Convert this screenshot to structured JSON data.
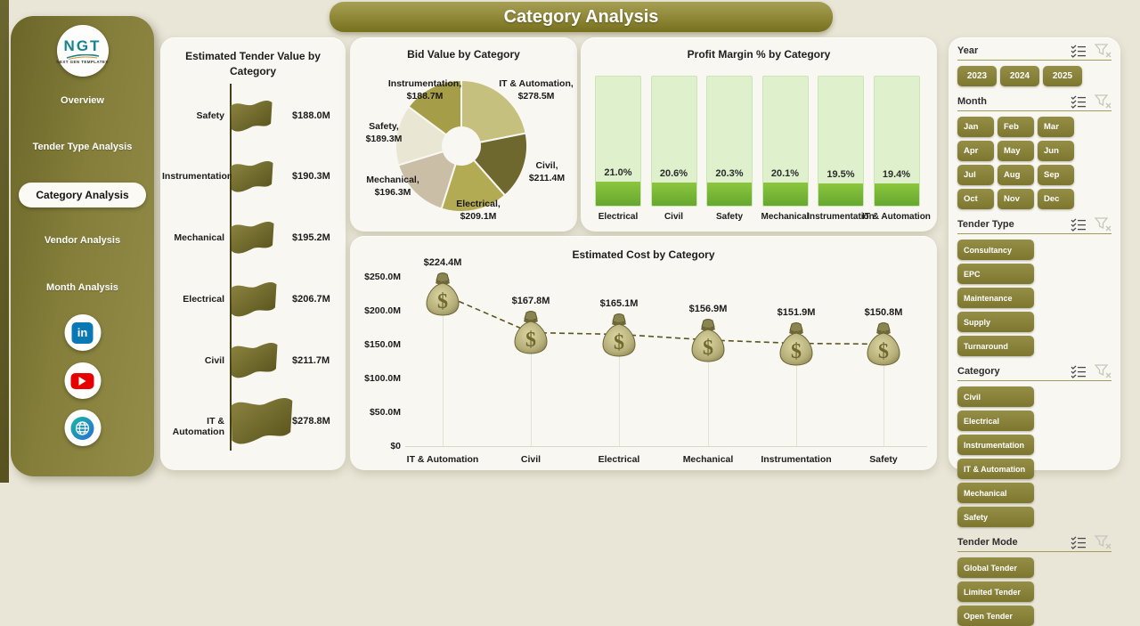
{
  "header": {
    "title": "Category Analysis"
  },
  "sidebar": {
    "logo": {
      "text": "NGT",
      "tagline": "NEXT GEN TEMPLATES"
    },
    "nav": [
      {
        "label": "Overview",
        "active": false
      },
      {
        "label": "Tender Type Analysis",
        "active": false
      },
      {
        "label": "Category Analysis",
        "active": true
      },
      {
        "label": "Vendor Analysis",
        "active": false
      },
      {
        "label": "Month Analysis",
        "active": false
      }
    ],
    "social": [
      {
        "name": "linkedin-icon"
      },
      {
        "name": "youtube-icon"
      },
      {
        "name": "globe-icon"
      }
    ]
  },
  "colors": {
    "accent_olive": "#8a8339",
    "sidebar_dark": "#6b6529",
    "panel_bg": "#f8f7f2",
    "page_bg": "#e9e6d8",
    "bar_track_green": "#dff0cd",
    "bar_fill_green": "#8cc63e"
  },
  "chart_data": [
    {
      "type": "bar",
      "variant": "flag-markers",
      "title": "Estimated Tender Value by Category",
      "categories": [
        "Safety",
        "Instrumentation",
        "Mechanical",
        "Electrical",
        "Civil",
        "IT & Automation"
      ],
      "values": [
        188.0,
        190.3,
        195.2,
        206.7,
        211.7,
        278.8
      ],
      "value_labels": [
        "$188.0M",
        "$190.3M",
        "$195.2M",
        "$206.7M",
        "$211.7M",
        "$278.8M"
      ]
    },
    {
      "type": "pie",
      "variant": "donut",
      "title": "Bid Value by Category",
      "categories": [
        "IT & Automation",
        "Civil",
        "Electrical",
        "Mechanical",
        "Safety",
        "Instrumentation"
      ],
      "values": [
        278.5,
        211.4,
        209.1,
        196.3,
        189.3,
        188.7
      ],
      "value_labels": [
        "$278.5M",
        "$211.4M",
        "$209.1M",
        "$196.3M",
        "$189.3M",
        "$188.7M"
      ],
      "colors": [
        "#c6c07f",
        "#6f682e",
        "#b3aa54",
        "#cabfa6",
        "#eae6d4",
        "#a59d48"
      ],
      "start_angle_deg": -90,
      "clockwise": true
    },
    {
      "type": "bar",
      "variant": "thermometer",
      "title": "Profit Margin % by Category",
      "categories": [
        "Electrical",
        "Civil",
        "Safety",
        "Mechanical",
        "Instrumentation",
        "IT & Automation"
      ],
      "values": [
        21.0,
        20.6,
        20.3,
        20.1,
        19.5,
        19.4
      ],
      "value_labels": [
        "21.0%",
        "20.6%",
        "20.3%",
        "20.1%",
        "19.5%",
        "19.4%"
      ]
    },
    {
      "type": "line",
      "variant": "money-bag-markers",
      "title": "Estimated Cost by Category",
      "categories": [
        "IT & Automation",
        "Civil",
        "Electrical",
        "Mechanical",
        "Instrumentation",
        "Safety"
      ],
      "values": [
        224.4,
        167.8,
        165.1,
        156.9,
        151.9,
        150.8
      ],
      "value_labels": [
        "$224.4M",
        "$167.8M",
        "$165.1M",
        "$156.9M",
        "$151.9M",
        "$150.8M"
      ],
      "y_ticks": [
        "$250.0M",
        "$200.0M",
        "$150.0M",
        "$100.0M",
        "$50.0M",
        "$0"
      ],
      "ylim": [
        0,
        250
      ],
      "line_style": "dashed",
      "grid": false
    }
  ],
  "filters": {
    "sections": [
      {
        "label": "Year",
        "options": [
          "2023",
          "2024",
          "2025"
        ]
      },
      {
        "label": "Month",
        "options": [
          "Jan",
          "Feb",
          "Mar",
          "Apr",
          "May",
          "Jun",
          "Jul",
          "Aug",
          "Sep",
          "Oct",
          "Nov",
          "Dec"
        ]
      },
      {
        "label": "Tender Type",
        "options": [
          "Consultancy",
          "EPC",
          "Maintenance",
          "Supply",
          "Turnaround"
        ]
      },
      {
        "label": "Category",
        "options": [
          "Civil",
          "Electrical",
          "Instrumentation",
          "IT & Automation",
          "Mechanical",
          "Safety"
        ]
      },
      {
        "label": "Tender Mode",
        "options": [
          "Global Tender",
          "Limited Tender",
          "Open Tender"
        ]
      }
    ],
    "icons": [
      {
        "name": "select-all-icon"
      },
      {
        "name": "clear-filter-icon"
      }
    ]
  }
}
